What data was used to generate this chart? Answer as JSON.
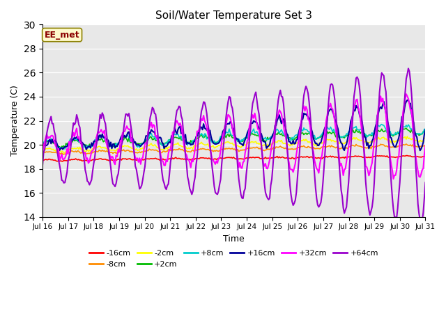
{
  "title": "Soil/Water Temperature Set 3",
  "xlabel": "Time",
  "ylabel": "Temperature (C)",
  "ylim": [
    14,
    30
  ],
  "yticks": [
    14,
    16,
    18,
    20,
    22,
    24,
    26,
    28,
    30
  ],
  "annotation_text": "EE_met",
  "background_color": "#e8e8e8",
  "series_order": [
    "-16cm",
    "-8cm",
    "-2cm",
    "+2cm",
    "+8cm",
    "+16cm",
    "+32cm",
    "+64cm"
  ],
  "series": {
    "-16cm": {
      "color": "#ff0000",
      "linewidth": 1.2
    },
    "-8cm": {
      "color": "#ff8c00",
      "linewidth": 1.2
    },
    "-2cm": {
      "color": "#ffff00",
      "linewidth": 1.2
    },
    "+2cm": {
      "color": "#00bb00",
      "linewidth": 1.2
    },
    "+8cm": {
      "color": "#00cccc",
      "linewidth": 1.2
    },
    "+16cm": {
      "color": "#000099",
      "linewidth": 1.5
    },
    "+32cm": {
      "color": "#ff00ff",
      "linewidth": 1.5
    },
    "+64cm": {
      "color": "#9900cc",
      "linewidth": 1.5
    }
  },
  "x_tick_labels": [
    "Jul 16",
    "Jul 17",
    "Jul 18",
    "Jul 19",
    "Jul 20",
    "Jul 21",
    "Jul 22",
    "Jul 23",
    "Jul 24",
    "Jul 25",
    "Jul 26",
    "Jul 27",
    "Jul 28",
    "Jul 29",
    "Jul 30",
    "Jul 31"
  ],
  "figsize": [
    6.4,
    4.8
  ],
  "dpi": 100
}
